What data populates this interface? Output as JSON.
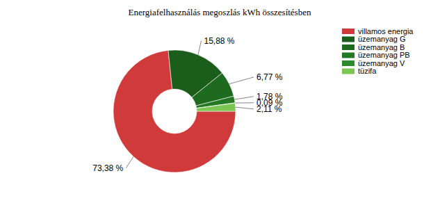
{
  "chart_data": {
    "type": "pie",
    "title": "Energiafelhasználás megoszlás kWh összesítésben",
    "categories": [
      "villamos energia",
      "üzemanyag G",
      "üzemanyag B",
      "üzemanyag PB",
      "üzemanyag V",
      "tüzifa"
    ],
    "values": [
      73.38,
      15.88,
      6.77,
      1.78,
      0.09,
      2.11
    ],
    "value_labels": [
      "73,38 %",
      "15,88 %",
      "6,77 %",
      "1,78 %",
      "0,09 %",
      "2,11 %"
    ],
    "colors": [
      "#d03a3a",
      "#1b5e1b",
      "#1e6a1e",
      "#237823",
      "#2b8a2b",
      "#7cc653"
    ],
    "data_labels": true,
    "legend": "right"
  }
}
